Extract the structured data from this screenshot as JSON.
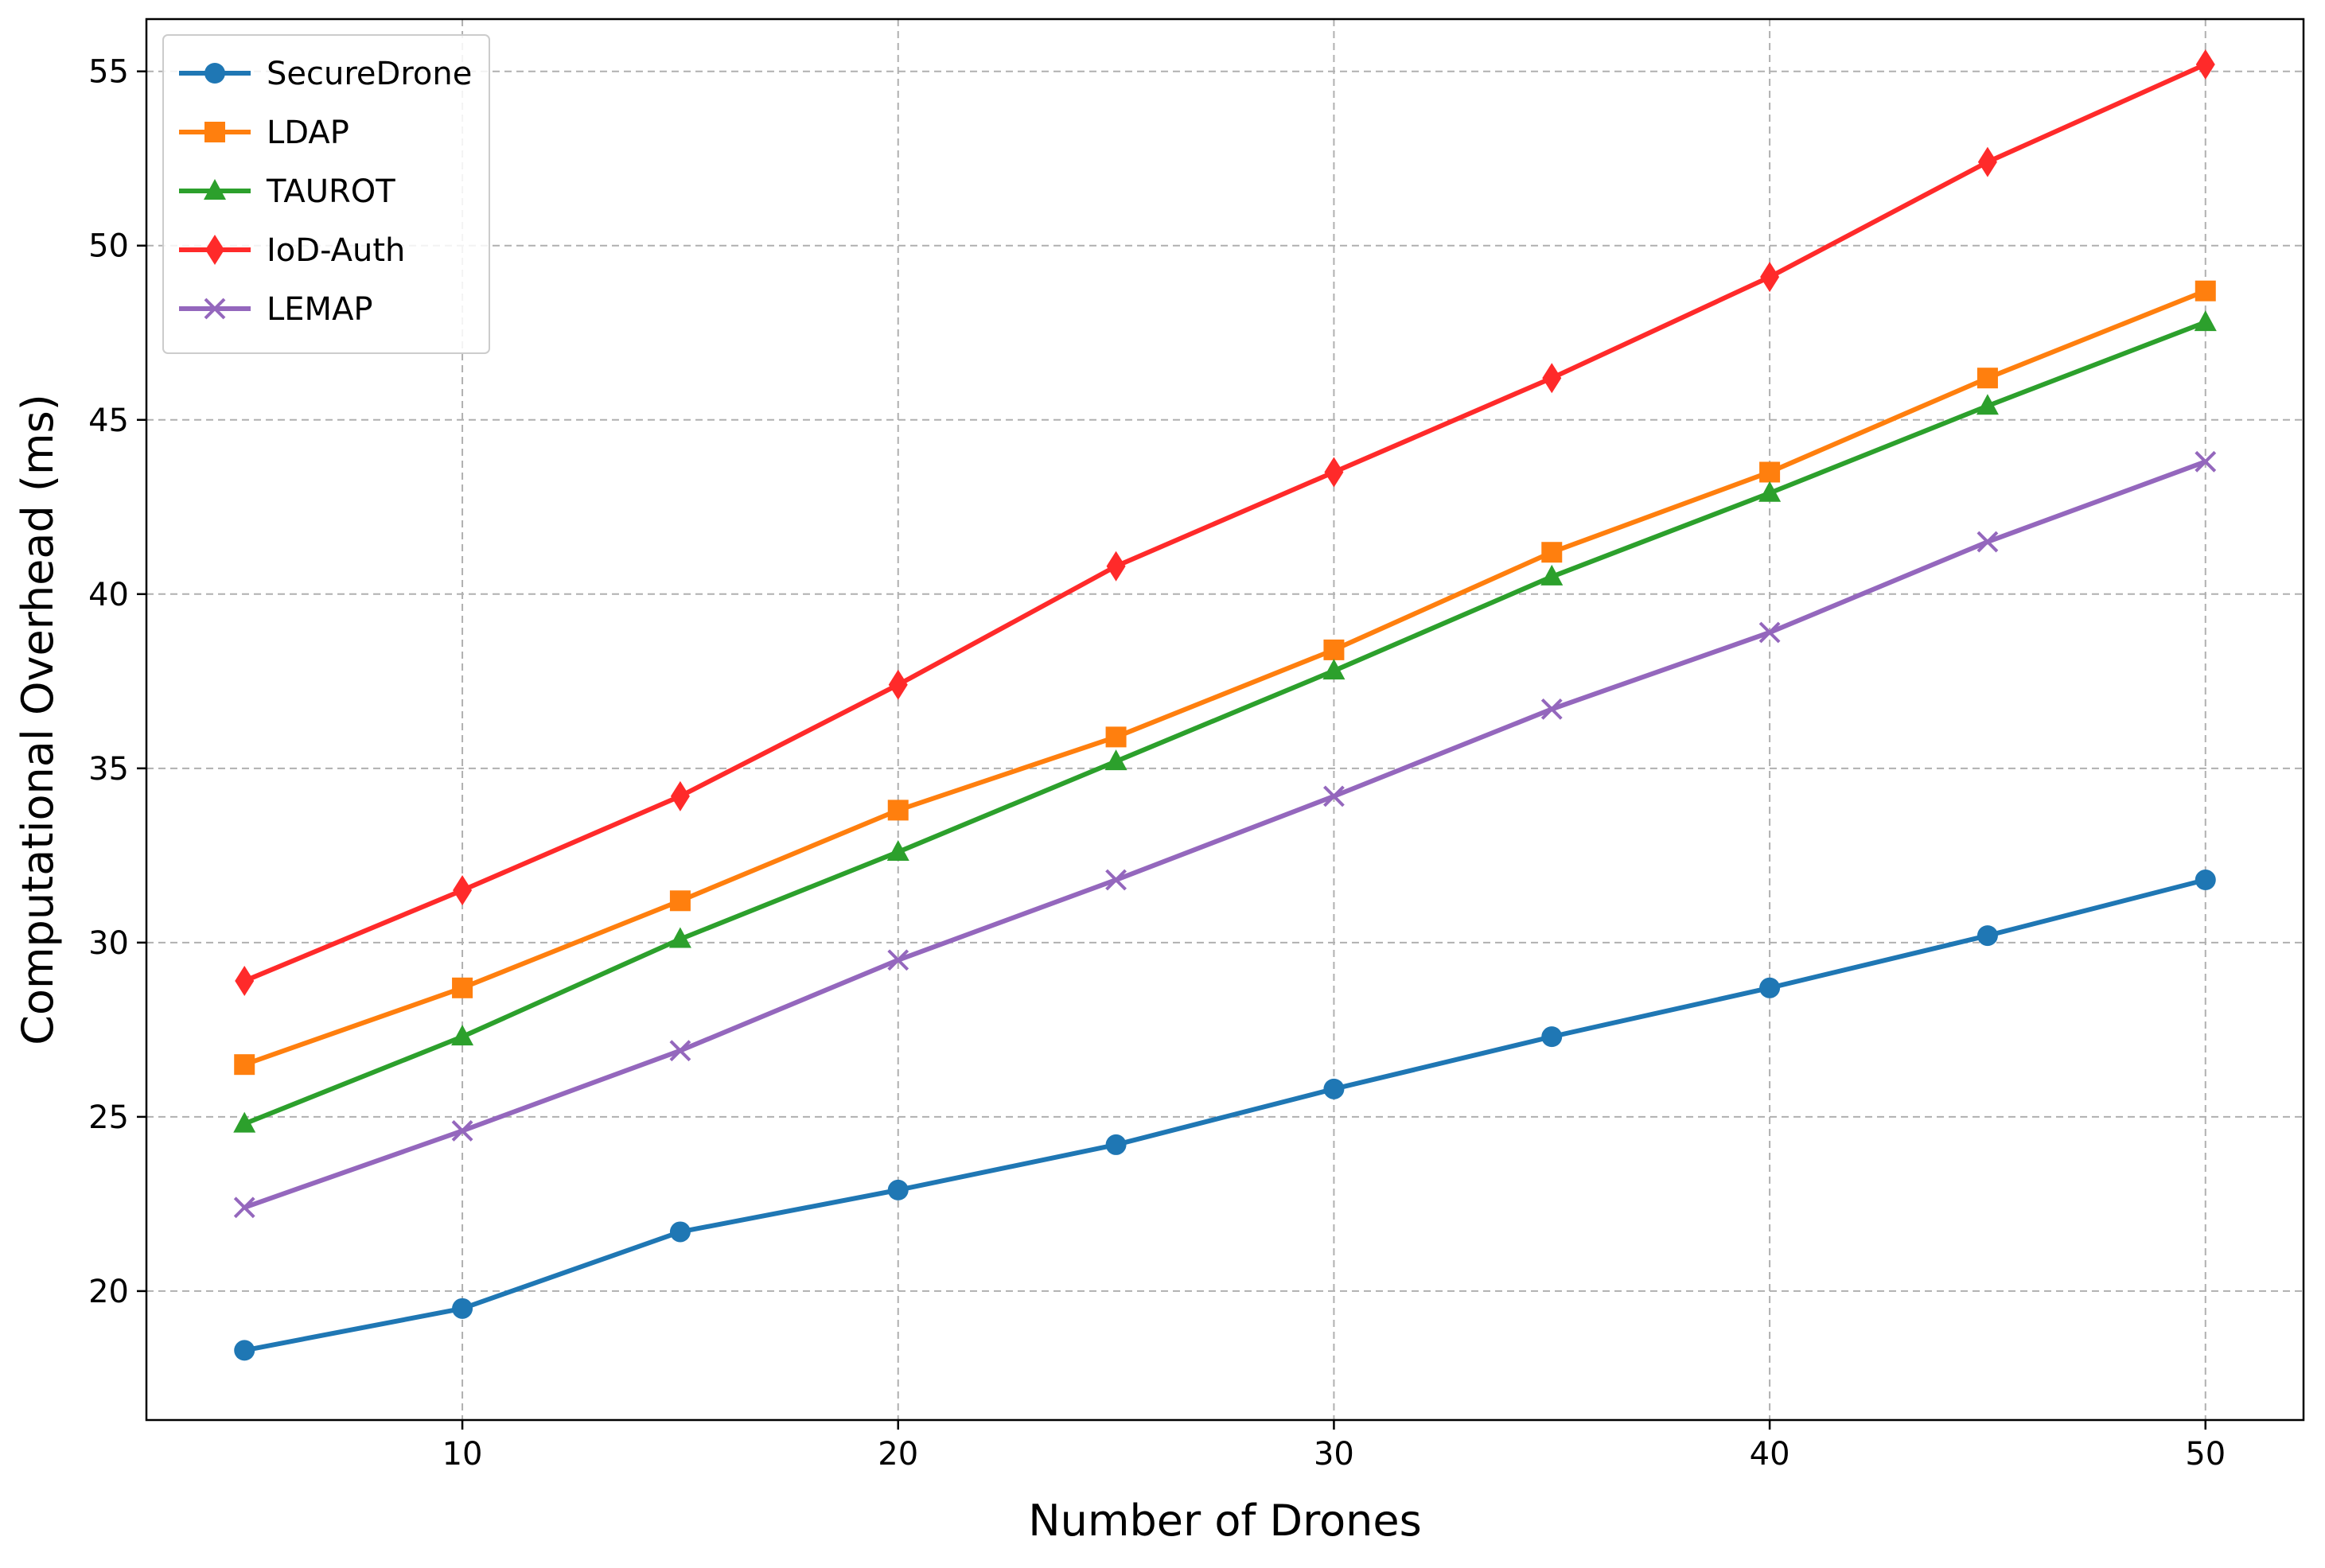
{
  "chart_data": {
    "type": "line",
    "title": "",
    "xlabel": "Number of Drones",
    "ylabel": "Computational Overhead (ms)",
    "x": [
      5,
      10,
      15,
      20,
      25,
      30,
      35,
      40,
      45,
      50
    ],
    "xlim": [
      2.75,
      52.25
    ],
    "ylim": [
      16.3,
      56.5
    ],
    "xticks": [
      10,
      20,
      30,
      40,
      50
    ],
    "yticks": [
      20,
      25,
      30,
      35,
      40,
      45,
      50,
      55
    ],
    "grid": true,
    "legend_position": "top-left",
    "series": [
      {
        "name": "SecureDrone",
        "color": "#1f77b4",
        "marker": "circle",
        "values": [
          18.3,
          19.5,
          21.7,
          22.9,
          24.2,
          25.8,
          27.3,
          28.7,
          30.2,
          31.8
        ]
      },
      {
        "name": "LDAP",
        "color": "#ff7f0e",
        "marker": "square",
        "values": [
          26.5,
          28.7,
          31.2,
          33.8,
          35.9,
          38.4,
          41.2,
          43.5,
          46.2,
          48.7
        ]
      },
      {
        "name": "TAUROT",
        "color": "#2ca02c",
        "marker": "triangle",
        "values": [
          24.8,
          27.3,
          30.1,
          32.6,
          35.2,
          37.8,
          40.5,
          42.9,
          45.4,
          47.8
        ]
      },
      {
        "name": "IoD-Auth",
        "color": "#ff2a2a",
        "marker": "diamond",
        "values": [
          28.9,
          31.5,
          34.2,
          37.4,
          40.8,
          43.5,
          46.2,
          49.1,
          52.4,
          55.2
        ]
      },
      {
        "name": "LEMAP",
        "color": "#9467bd",
        "marker": "x",
        "values": [
          22.4,
          24.6,
          26.9,
          29.5,
          31.8,
          34.2,
          36.7,
          38.9,
          41.5,
          43.8
        ]
      }
    ]
  }
}
